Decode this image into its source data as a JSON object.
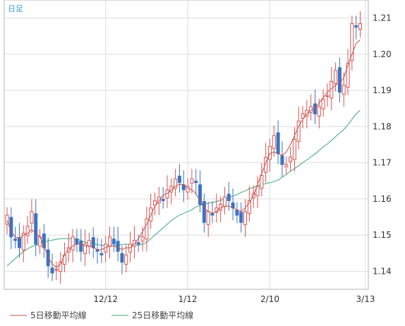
{
  "timeframe_label": "日足",
  "chart_data": {
    "type": "candlestick",
    "ylim": [
      1.135,
      1.215
    ],
    "y_ticks": [
      "1.21",
      "1.20",
      "1.19",
      "1.18",
      "1.17",
      "1.16",
      "1.15",
      "1.14"
    ],
    "x_labels": [
      "12/12",
      "1/12",
      "2/10",
      "3/13"
    ],
    "grid": true,
    "legend_position": "bottom-left",
    "colors": {
      "up_candle": "#d9534f",
      "down_candle": "#3b73c4",
      "ma5": "#c0504d",
      "ma25": "#3aa87a",
      "grid": "#dddddd",
      "timeframe_label": "#3a9fd6"
    },
    "series": [
      {
        "name": "5日移動平均線"
      },
      {
        "name": "25日移動平均線"
      }
    ],
    "close": [
      1.1555,
      1.1495,
      1.1485,
      1.1465,
      1.1505,
      1.1525,
      1.1565,
      1.1475,
      1.1495,
      1.1465,
      1.1415,
      1.1395,
      1.1405,
      1.1425,
      1.1445,
      1.1465,
      1.1495,
      1.1475,
      1.1455,
      1.1475,
      1.1485,
      1.1465,
      1.1455,
      1.1445,
      1.1475,
      1.1495,
      1.1475,
      1.1455,
      1.1425,
      1.1445,
      1.1475,
      1.1485,
      1.1475,
      1.1495,
      1.1545,
      1.1575,
      1.1595,
      1.1605,
      1.1595,
      1.1625,
      1.1635,
      1.1655,
      1.1645,
      1.1625,
      1.1635,
      1.1655,
      1.1645,
      1.1585,
      1.1535,
      1.1565,
      1.1555,
      1.1575,
      1.1585,
      1.1605,
      1.1595,
      1.1575,
      1.1555,
      1.1535,
      1.1565,
      1.1595,
      1.1615,
      1.1635,
      1.1665,
      1.1715,
      1.1745,
      1.1775,
      1.1725,
      1.1695,
      1.1695,
      1.1715,
      1.1765,
      1.1815,
      1.1835,
      1.1845,
      1.1855,
      1.1835,
      1.1855,
      1.1875,
      1.1885,
      1.1925,
      1.1955,
      1.1895,
      1.1915,
      1.1975,
      1.2085,
      1.2075,
      1.2085
    ],
    "ma5": [
      1.154,
      1.151,
      1.1495,
      1.149,
      1.15,
      1.1505,
      1.1515,
      1.1505,
      1.1495,
      1.147,
      1.144,
      1.142,
      1.141,
      1.142,
      1.1445,
      1.146,
      1.147,
      1.1475,
      1.1475,
      1.147,
      1.147,
      1.1465,
      1.146,
      1.146,
      1.1465,
      1.147,
      1.147,
      1.1465,
      1.146,
      1.1465,
      1.1465,
      1.1475,
      1.149,
      1.151,
      1.153,
      1.1555,
      1.158,
      1.1595,
      1.161,
      1.1615,
      1.1625,
      1.1635,
      1.164,
      1.164,
      1.163,
      1.1625,
      1.1615,
      1.1595,
      1.1575,
      1.1565,
      1.156,
      1.1565,
      1.1575,
      1.158,
      1.158,
      1.1575,
      1.157,
      1.1565,
      1.1575,
      1.159,
      1.161,
      1.164,
      1.167,
      1.17,
      1.1725,
      1.173,
      1.1725,
      1.172,
      1.173,
      1.175,
      1.1775,
      1.18,
      1.182,
      1.1835,
      1.1845,
      1.185,
      1.1865,
      1.188,
      1.1895,
      1.1905,
      1.1915,
      1.192,
      1.1935,
      1.197,
      1.2,
      1.203,
      1.204
    ],
    "ma25": [
      1.1415,
      1.1425,
      1.1435,
      1.1445,
      1.1455,
      1.1462,
      1.1468,
      1.1472,
      1.1476,
      1.148,
      1.1484,
      1.1486,
      1.1488,
      1.149,
      1.149,
      1.149,
      1.149,
      1.149,
      1.1485,
      1.148,
      1.1478,
      1.1476,
      1.1474,
      1.1472,
      1.147,
      1.147,
      1.147,
      1.1472,
      1.1474,
      1.1475,
      1.1474,
      1.1472,
      1.1472,
      1.1475,
      1.148,
      1.149,
      1.15,
      1.151,
      1.152,
      1.153,
      1.154,
      1.1548,
      1.1555,
      1.156,
      1.1565,
      1.157,
      1.1578,
      1.1582,
      1.1585,
      1.1588,
      1.159,
      1.1593,
      1.1596,
      1.16,
      1.1604,
      1.1608,
      1.1612,
      1.1618,
      1.1622,
      1.1628,
      1.1632,
      1.1636,
      1.164,
      1.1642,
      1.1645,
      1.1648,
      1.1652,
      1.166,
      1.1668,
      1.1676,
      1.1684,
      1.1692,
      1.17,
      1.1708,
      1.1716,
      1.1724,
      1.1734,
      1.1744,
      1.1752,
      1.1762,
      1.1772,
      1.1782,
      1.1792,
      1.1805,
      1.182,
      1.1835,
      1.1845
    ]
  }
}
